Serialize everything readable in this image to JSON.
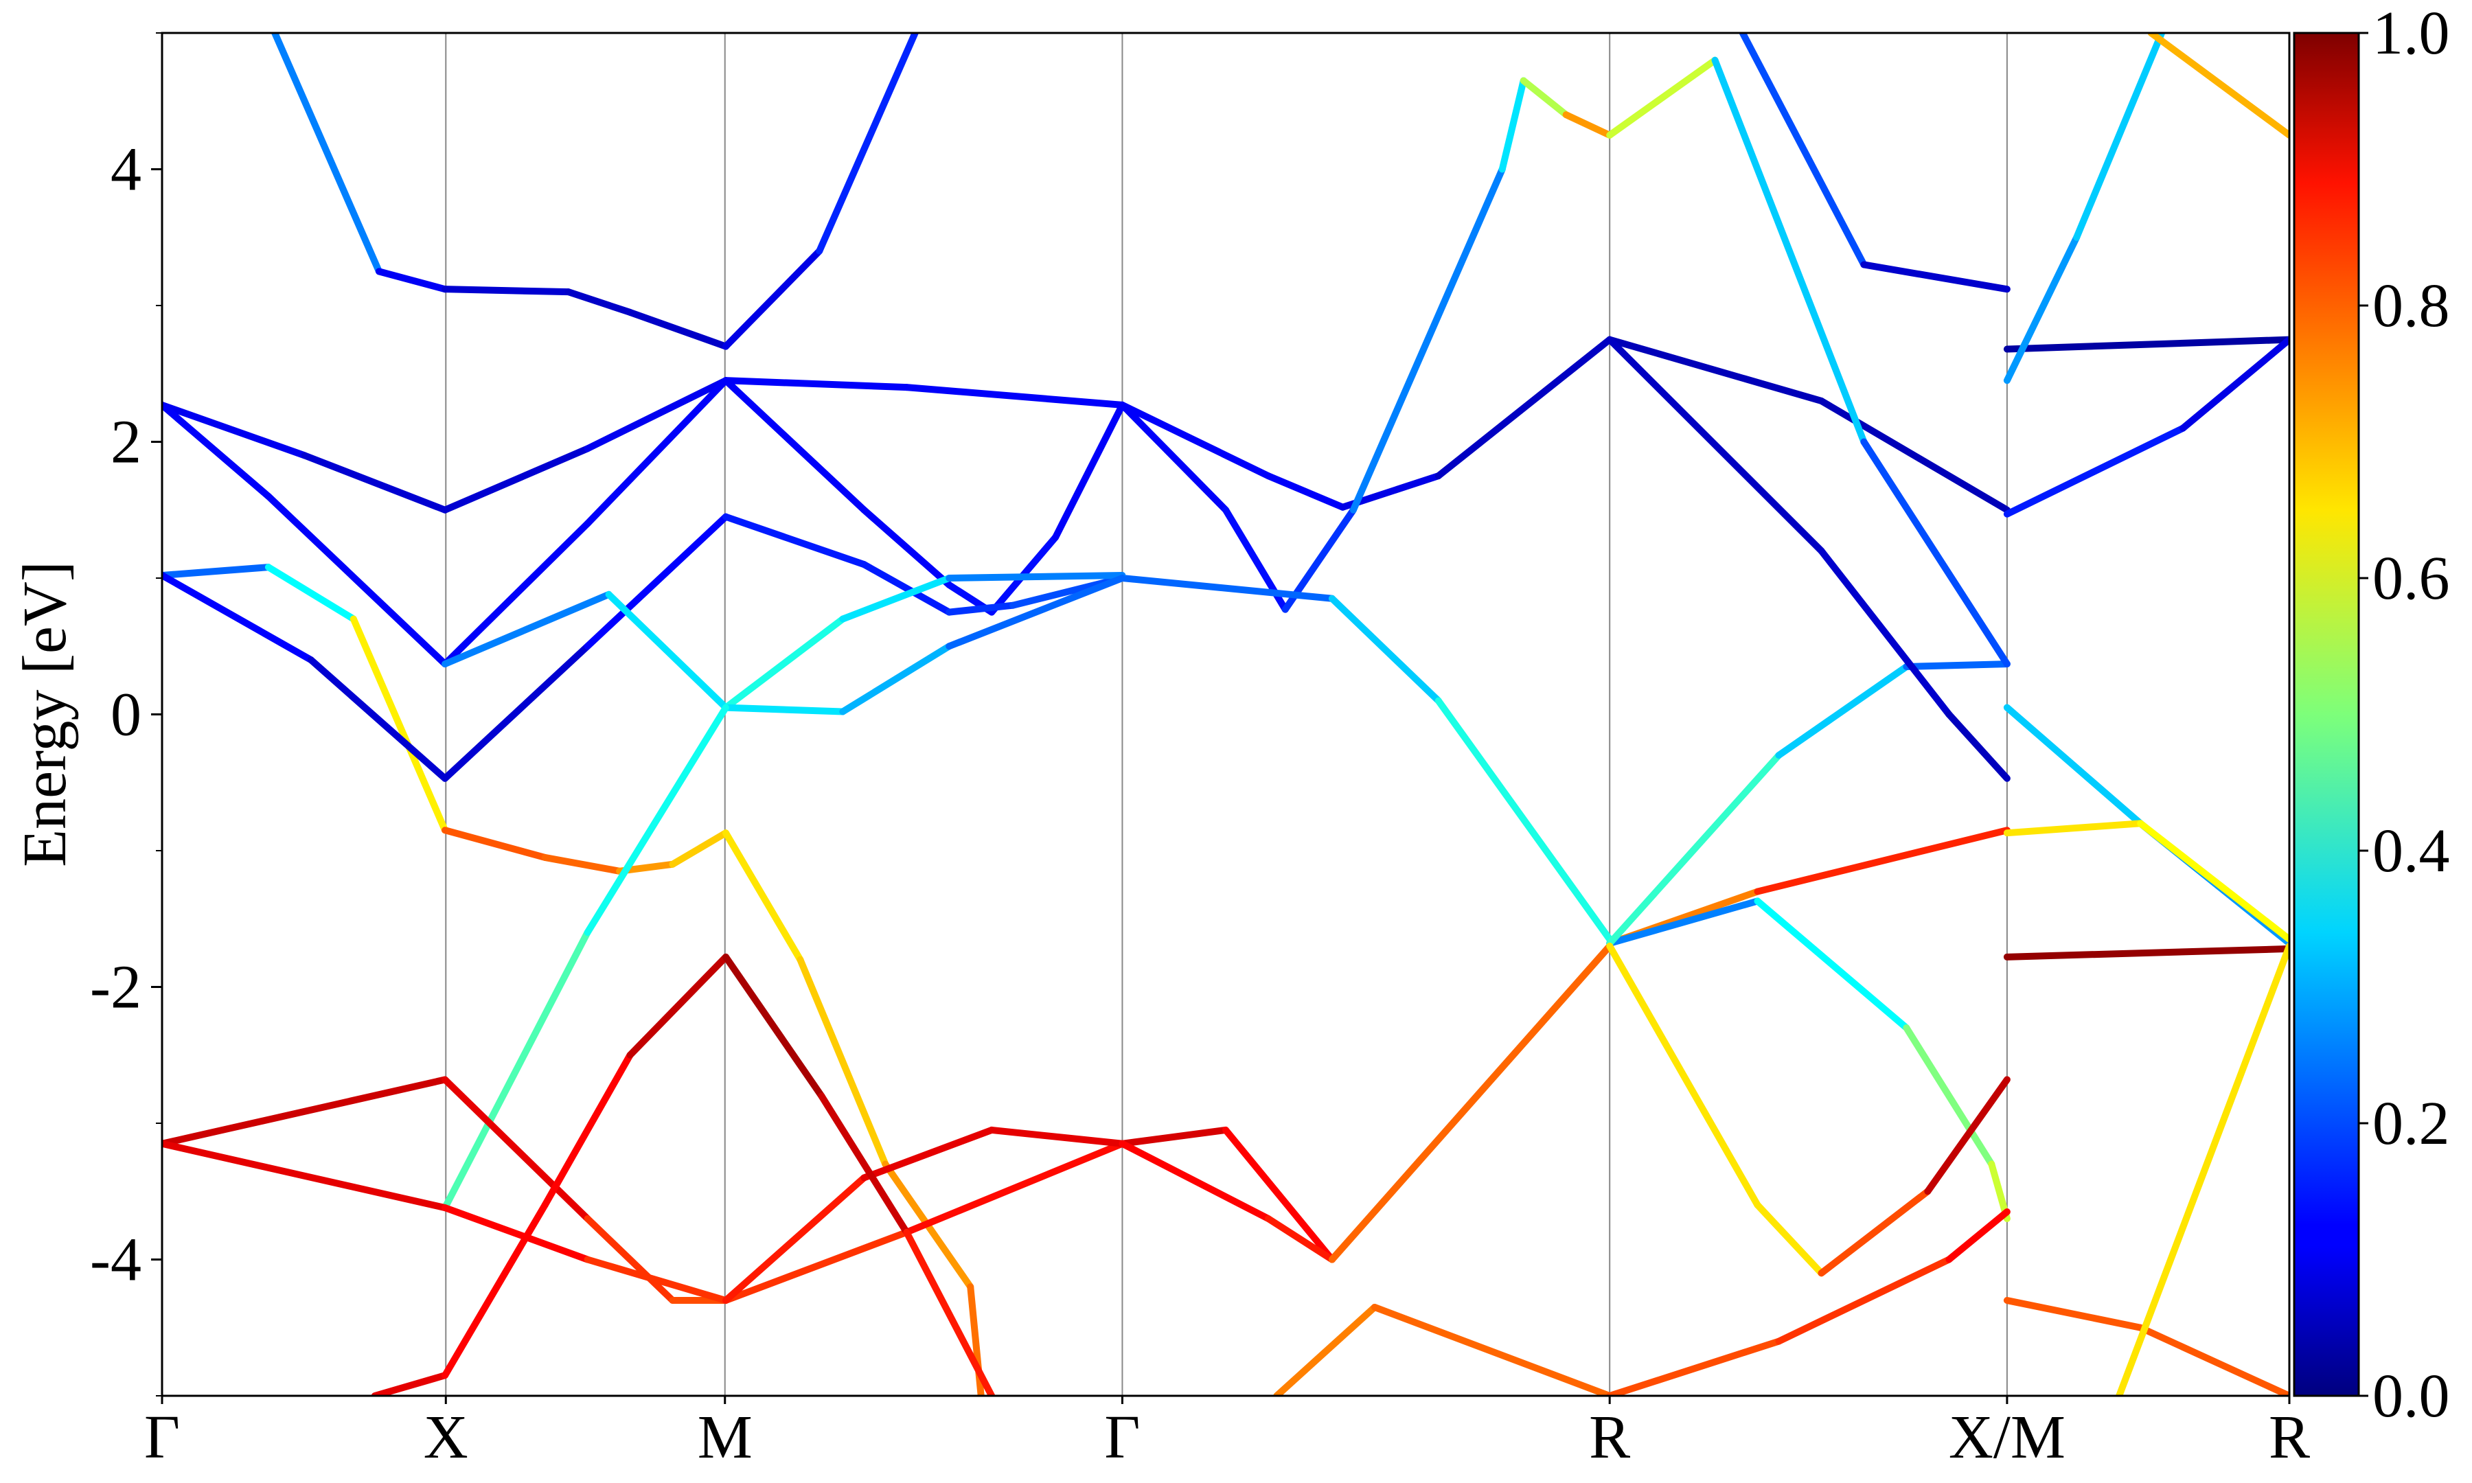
{
  "chart_data": {
    "type": "line",
    "y_label": "Energy [eV]",
    "xlim": [
      0,
      1
    ],
    "xticks": [
      {
        "value": 0,
        "label": "Γ"
      },
      {
        "value": 0.1334,
        "label": "X"
      },
      {
        "value": 0.2646,
        "label": "M"
      },
      {
        "value": 0.4514,
        "label": "Γ"
      },
      {
        "value": 0.6805,
        "label": "R"
      },
      {
        "value": 0.8673,
        "label": "X/M"
      },
      {
        "value": 1,
        "label": "R"
      }
    ],
    "ylim": [
      -5,
      5
    ],
    "yticks": [
      -4,
      -2,
      0,
      2,
      4
    ],
    "yminorticks": [
      -5,
      -3,
      -1,
      1,
      3,
      5
    ],
    "grid": true,
    "colormap": "jet",
    "clim": [
      0,
      1
    ],
    "cticks": [
      {
        "value": 0,
        "label": "0.0"
      },
      0.2,
      0.4,
      0.6,
      0.8,
      {
        "value": 1,
        "label": "1.0"
      }
    ],
    "series": [
      {
        "x": [
          0.053,
          0.102,
          0.133,
          0.191,
          0.22,
          0.265,
          0.309,
          0.354
        ],
        "values": [
          5,
          3.25,
          3.12,
          3.1,
          2.95,
          2.7,
          3.4,
          5
        ],
        "weights": [
          0.35,
          0.15,
          0.08,
          0.08,
          0.06,
          0.08,
          0.12,
          0.2
        ]
      },
      {
        "x": [
          0,
          0.067,
          0.133,
          0.2,
          0.265,
          0.35,
          0.4514,
          0.52,
          0.555,
          0.6,
          0.6805,
          0.78,
          0.8673
        ],
        "values": [
          2.27,
          1.9,
          1.5,
          1.95,
          2.45,
          2.4,
          2.27,
          1.75,
          1.52,
          1.75,
          2.75,
          2.3,
          1.5
        ],
        "weights": [
          0.12,
          0.1,
          0.06,
          0.1,
          0.12,
          0.12,
          0.12,
          0.12,
          0.12,
          0.08,
          0.05,
          0.06,
          0.05
        ]
      },
      {
        "x": [
          0,
          0.05,
          0.133,
          0.2,
          0.265,
          0.33,
          0.37,
          0.39,
          0.42,
          0.4514,
          0.5,
          0.528,
          0.56,
          0.63,
          0.64,
          0.66,
          0.6805
        ],
        "values": [
          2.27,
          1.6,
          0.37,
          1.4,
          2.45,
          1.5,
          0.95,
          0.75,
          1.3,
          2.27,
          1.5,
          0.77,
          1.5,
          4.0,
          4.65,
          4.4,
          4.25
        ],
        "weights": [
          0.12,
          0.12,
          0.12,
          0.12,
          0.12,
          0.12,
          0.12,
          0.15,
          0.12,
          0.12,
          0.12,
          0.15,
          0.2,
          0.3,
          0.4,
          0.7,
          0.75
        ]
      },
      {
        "x": [
          0,
          0.05,
          0.09,
          0.133,
          0.18,
          0.215,
          0.24,
          0.265,
          0.3,
          0.34,
          0.38,
          0.385
        ],
        "values": [
          1.02,
          1.08,
          0.7,
          -0.85,
          -1.05,
          -1.15,
          -1.1,
          -0.87,
          -1.8,
          -3.3,
          -4.2,
          -5
        ],
        "weights": [
          0.2,
          0.25,
          0.5,
          0.78,
          0.8,
          0.75,
          0.7,
          0.65,
          0.65,
          0.7,
          0.75,
          0.78
        ]
      },
      {
        "x": [
          0,
          0.07,
          0.133,
          0.2,
          0.265,
          0.33,
          0.37,
          0.4,
          0.4514,
          0.55,
          0.6,
          0.6805
        ],
        "values": [
          1.02,
          0.4,
          -0.47,
          0.5,
          1.45,
          1.1,
          0.75,
          0.8,
          1.0,
          0.85,
          0.1,
          -1.65
        ],
        "weights": [
          0.15,
          0.1,
          0.06,
          0.1,
          0.15,
          0.15,
          0.15,
          0.2,
          0.2,
          0.25,
          0.4,
          0.4
        ]
      },
      {
        "x": [
          0.133,
          0.21,
          0.265,
          0.32,
          0.37,
          0.4514
        ],
        "values": [
          0.37,
          0.88,
          0.05,
          0.7,
          1.0,
          1.02
        ],
        "weights": [
          0.2,
          0.3,
          0.4,
          0.4,
          0.3,
          0.2
        ]
      },
      {
        "x": [
          0.265,
          0.32,
          0.37,
          0.4514
        ],
        "values": [
          0.05,
          0.02,
          0.5,
          1.0
        ],
        "weights": [
          0.35,
          0.35,
          0.25,
          0.2
        ]
      },
      {
        "x": [
          0.133,
          0.2,
          0.265
        ],
        "values": [
          -3.62,
          -1.6,
          0.05
        ],
        "weights": [
          0.5,
          0.4,
          0.38
        ]
      },
      {
        "x": [
          0,
          0.133,
          0.2,
          0.24,
          0.265,
          0.35,
          0.4514,
          0.5,
          0.55,
          0.6805
        ],
        "values": [
          -3.15,
          -2.68,
          -3.7,
          -4.3,
          -4.3,
          -3.8,
          -3.15,
          -3.05,
          -4.0,
          -1.7
        ],
        "weights": [
          0.9,
          0.95,
          0.85,
          0.8,
          0.8,
          0.85,
          0.88,
          0.95,
          0.8,
          0.7
        ]
      },
      {
        "x": [
          0,
          0.133,
          0.2,
          0.265,
          0.33,
          0.39,
          0.4514,
          0.52,
          0.55,
          0.6805
        ],
        "values": [
          -3.15,
          -3.62,
          -4.0,
          -4.3,
          -3.4,
          -3.05,
          -3.15,
          -3.7,
          -4.0,
          -1.7
        ],
        "weights": [
          0.9,
          0.9,
          0.85,
          0.8,
          0.9,
          0.9,
          0.9,
          0.85,
          0.85,
          0.7
        ]
      },
      {
        "x": [
          0.1,
          0.133,
          0.18,
          0.22,
          0.265,
          0.31,
          0.35,
          0.39
        ],
        "values": [
          -5,
          -4.85,
          -3.6,
          -2.5,
          -1.78,
          -2.8,
          -3.8,
          -5
        ],
        "weights": [
          0.9,
          0.9,
          0.85,
          0.9,
          0.97,
          0.95,
          0.9,
          0.8
        ]
      },
      {
        "x": [
          0.6805,
          0.75,
          0.8673
        ],
        "values": [
          -1.68,
          -1.3,
          -0.85
        ],
        "weights": [
          0.7,
          0.8,
          0.88
        ]
      },
      {
        "x": [
          0.6805,
          0.75,
          0.82,
          0.86,
          0.8673
        ],
        "values": [
          -1.68,
          -1.37,
          -2.3,
          -3.3,
          -3.7
        ],
        "weights": [
          0.2,
          0.3,
          0.45,
          0.55,
          0.6
        ]
      },
      {
        "x": [
          0.6805,
          0.76,
          0.82,
          0.8673
        ],
        "values": [
          -1.68,
          -0.3,
          0.35,
          0.37
        ],
        "weights": [
          0.45,
          0.4,
          0.25,
          0.2
        ]
      },
      {
        "x": [
          0.6805,
          0.78,
          0.84,
          0.8673
        ],
        "values": [
          2.75,
          1.2,
          0.0,
          -0.47
        ],
        "weights": [
          0.05,
          0.08,
          0.07,
          0.05
        ]
      },
      {
        "x": [
          0.6805,
          0.73,
          0.8,
          0.8673
        ],
        "values": [
          4.25,
          4.8,
          2.0,
          0.37
        ],
        "weights": [
          0.75,
          0.4,
          0.25,
          0.15
        ]
      },
      {
        "x": [
          0.743,
          0.8,
          0.8673
        ],
        "values": [
          5,
          3.3,
          3.12
        ],
        "weights": [
          0.3,
          0.1,
          0.05
        ]
      },
      {
        "x": [
          0.524,
          0.57,
          0.6805,
          0.76,
          0.84,
          0.8673
        ],
        "values": [
          -5,
          -4.35,
          -5,
          -4.6,
          -4.0,
          -3.65
        ],
        "weights": [
          0.75,
          0.75,
          0.8,
          0.8,
          0.85,
          0.9
        ]
      },
      {
        "x": [
          0.6805,
          0.75,
          0.78,
          0.83,
          0.8673
        ],
        "values": [
          -1.7,
          -3.6,
          -4.1,
          -3.5,
          -2.68
        ],
        "weights": [
          0.7,
          0.6,
          0.7,
          0.9,
          0.97
        ]
      },
      {
        "x": [
          0.8673,
          1
        ],
        "values": [
          2.68,
          2.75
        ],
        "weights": [
          0.02,
          0.05
        ]
      },
      {
        "x": [
          0.8673,
          0.9,
          0.94
        ],
        "values": [
          2.45,
          3.5,
          5
        ],
        "weights": [
          0.25,
          0.3,
          0.35
        ]
      },
      {
        "x": [
          0.8673,
          0.95,
          1
        ],
        "values": [
          1.47,
          2.1,
          2.75
        ],
        "weights": [
          0.15,
          0.15,
          0.05
        ]
      },
      {
        "x": [
          0.8673,
          0.93,
          1
        ],
        "values": [
          0.05,
          -0.8,
          -1.68
        ],
        "weights": [
          0.35,
          0.3,
          0.25
        ]
      },
      {
        "x": [
          0.8673,
          0.93,
          1
        ],
        "values": [
          -0.87,
          -0.8,
          -1.65
        ],
        "weights": [
          0.65,
          0.65,
          0.6
        ]
      },
      {
        "x": [
          0.8673,
          1
        ],
        "values": [
          -1.78,
          -1.72
        ],
        "weights": [
          0.98,
          0.98
        ]
      },
      {
        "x": [
          0.8673,
          0.93,
          1
        ],
        "values": [
          -4.3,
          -4.5,
          -5
        ],
        "weights": [
          0.8,
          0.78,
          0.8
        ]
      },
      {
        "x": [
          0.92,
          1
        ],
        "values": [
          -5,
          -1.7
        ],
        "weights": [
          0.65,
          0.65
        ]
      },
      {
        "x": [
          0.935,
          1
        ],
        "values": [
          5,
          4.25
        ],
        "weights": [
          0.65,
          0.75
        ]
      }
    ]
  }
}
